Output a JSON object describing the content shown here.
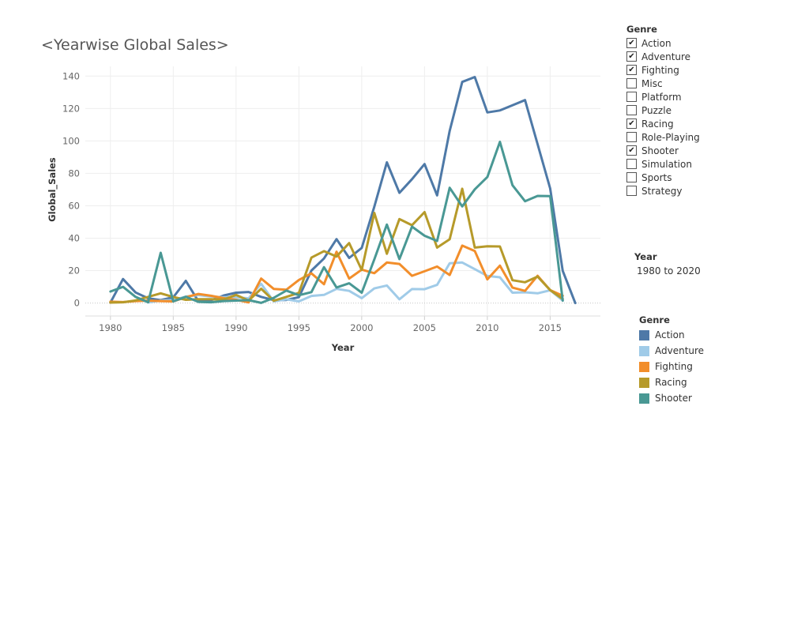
{
  "title": "<Yearwise Global Sales>",
  "genre_filter": {
    "title": "Genre",
    "items": [
      {
        "label": "Action",
        "checked": true
      },
      {
        "label": "Adventure",
        "checked": true
      },
      {
        "label": "Fighting",
        "checked": true
      },
      {
        "label": "Misc",
        "checked": false
      },
      {
        "label": "Platform",
        "checked": false
      },
      {
        "label": "Puzzle",
        "checked": false
      },
      {
        "label": "Racing",
        "checked": true
      },
      {
        "label": "Role-Playing",
        "checked": false
      },
      {
        "label": "Shooter",
        "checked": true
      },
      {
        "label": "Simulation",
        "checked": false
      },
      {
        "label": "Sports",
        "checked": false
      },
      {
        "label": "Strategy",
        "checked": false
      }
    ]
  },
  "year_filter": {
    "title": "Year",
    "range": "1980 to 2020"
  },
  "legend": {
    "title": "Genre",
    "items": [
      {
        "label": "Action",
        "color": "#4e79a7"
      },
      {
        "label": "Adventure",
        "color": "#a0cbe8"
      },
      {
        "label": "Fighting",
        "color": "#f28e2b"
      },
      {
        "label": "Racing",
        "color": "#b69a2a"
      },
      {
        "label": "Shooter",
        "color": "#499894"
      }
    ]
  },
  "chart_data": {
    "type": "line",
    "title": "<Yearwise Global Sales>",
    "xlabel": "Year",
    "ylabel": "Global_Sales",
    "xlim": [
      1978,
      2019
    ],
    "ylim": [
      -8,
      146
    ],
    "xticks": [
      1980,
      1985,
      1990,
      1995,
      2000,
      2005,
      2010,
      2015
    ],
    "yticks": [
      0,
      20,
      40,
      60,
      80,
      100,
      120,
      140
    ],
    "grid": true,
    "legend_position": "right",
    "series": [
      {
        "name": "Action",
        "color": "#4e79a7",
        "x": [
          1980,
          1981,
          1982,
          1983,
          1984,
          1985,
          1986,
          1987,
          1988,
          1989,
          1990,
          1991,
          1992,
          1993,
          1994,
          1995,
          1996,
          1997,
          1998,
          1999,
          2000,
          2001,
          2002,
          2003,
          2004,
          2005,
          2006,
          2007,
          2008,
          2009,
          2010,
          2011,
          2012,
          2013,
          2014,
          2015,
          2016,
          2017
        ],
        "y": [
          0.3,
          14.8,
          6.5,
          2.9,
          1.8,
          3.5,
          13.7,
          1.1,
          1.7,
          4.6,
          6.4,
          6.8,
          3.8,
          1.8,
          1.9,
          3.6,
          20,
          27.5,
          39.4,
          27.8,
          34,
          59.4,
          86.8,
          68,
          76.4,
          85.7,
          66.4,
          106.2,
          136.4,
          139.4,
          117.6,
          118.8,
          122,
          125.2,
          98,
          70.7,
          19.9,
          0.01
        ]
      },
      {
        "name": "Adventure",
        "color": "#a0cbe8",
        "x": [
          1983,
          1984,
          1985,
          1986,
          1987,
          1988,
          1989,
          1990,
          1991,
          1992,
          1993,
          1994,
          1995,
          1996,
          1997,
          1998,
          1999,
          2000,
          2001,
          2002,
          2003,
          2004,
          2005,
          2006,
          2007,
          2008,
          2009,
          2010,
          2011,
          2012,
          2013,
          2014,
          2015,
          2016
        ],
        "y": [
          0.4,
          1.5,
          1.8,
          4,
          4.9,
          4,
          3.6,
          3.6,
          2.9,
          11.9,
          1,
          2.3,
          1,
          4.4,
          5,
          8.7,
          7.5,
          3,
          9,
          10.8,
          2.3,
          8.6,
          8.5,
          11.2,
          24.5,
          25,
          20.9,
          16.7,
          15.9,
          6.4,
          6.6,
          6,
          7.9,
          1.5
        ]
      },
      {
        "name": "Fighting",
        "color": "#f28e2b",
        "x": [
          1980,
          1981,
          1982,
          1983,
          1984,
          1985,
          1986,
          1987,
          1988,
          1989,
          1990,
          1991,
          1992,
          1993,
          1994,
          1995,
          1996,
          1997,
          1998,
          1999,
          2000,
          2001,
          2002,
          2003,
          2004,
          2005,
          2006,
          2007,
          2008,
          2009,
          2010,
          2011,
          2012,
          2013,
          2014,
          2015,
          2016
        ],
        "y": [
          0.8,
          0.6,
          1.2,
          1.5,
          1.2,
          1,
          3.6,
          5.6,
          4.5,
          3,
          2,
          0.4,
          15.1,
          8.7,
          8.2,
          14.2,
          18.3,
          11.6,
          31.6,
          15.1,
          20.6,
          18.4,
          25,
          24.1,
          16.8,
          19.6,
          22.5,
          17.3,
          35.4,
          32.1,
          14.6,
          23.1,
          9.5,
          7.5,
          16.8,
          8,
          4.5
        ]
      },
      {
        "name": "Racing",
        "color": "#b69a2a",
        "x": [
          1980,
          1981,
          1982,
          1983,
          1984,
          1985,
          1986,
          1987,
          1988,
          1989,
          1990,
          1991,
          1992,
          1993,
          1994,
          1995,
          1996,
          1997,
          1998,
          1999,
          2000,
          2001,
          2002,
          2003,
          2004,
          2005,
          2006,
          2007,
          2008,
          2009,
          2010,
          2011,
          2012,
          2013,
          2014,
          2015,
          2016
        ],
        "y": [
          0.3,
          0.5,
          1.6,
          3.8,
          6,
          3.7,
          2,
          2.4,
          2.4,
          2.2,
          5,
          1.5,
          8.8,
          1.4,
          3.8,
          6.3,
          28,
          32,
          28.7,
          37,
          20.4,
          55.6,
          30.4,
          51.8,
          48,
          56.1,
          34.2,
          39.3,
          70.5,
          34.2,
          35,
          34.9,
          14.1,
          12.8,
          16.3,
          8,
          2.5
        ]
      },
      {
        "name": "Shooter",
        "color": "#499894",
        "x": [
          1980,
          1981,
          1982,
          1983,
          1984,
          1985,
          1986,
          1987,
          1988,
          1989,
          1990,
          1991,
          1992,
          1993,
          1994,
          1995,
          1996,
          1997,
          1998,
          1999,
          2000,
          2001,
          2002,
          2003,
          2004,
          2005,
          2006,
          2007,
          2008,
          2009,
          2010,
          2011,
          2012,
          2013,
          2014,
          2015,
          2016
        ],
        "y": [
          7.1,
          10,
          3.8,
          0.5,
          31,
          1,
          3.9,
          0.7,
          0.5,
          1.2,
          1.5,
          1.8,
          0.1,
          3.2,
          7.7,
          4.8,
          6.7,
          22.1,
          9.6,
          12.2,
          6.4,
          26.9,
          48.4,
          27.1,
          47.1,
          41.5,
          38.3,
          71.1,
          59.6,
          70.1,
          77.7,
          99.4,
          72.7,
          62.8,
          66.1,
          66,
          1.5
        ]
      }
    ]
  }
}
